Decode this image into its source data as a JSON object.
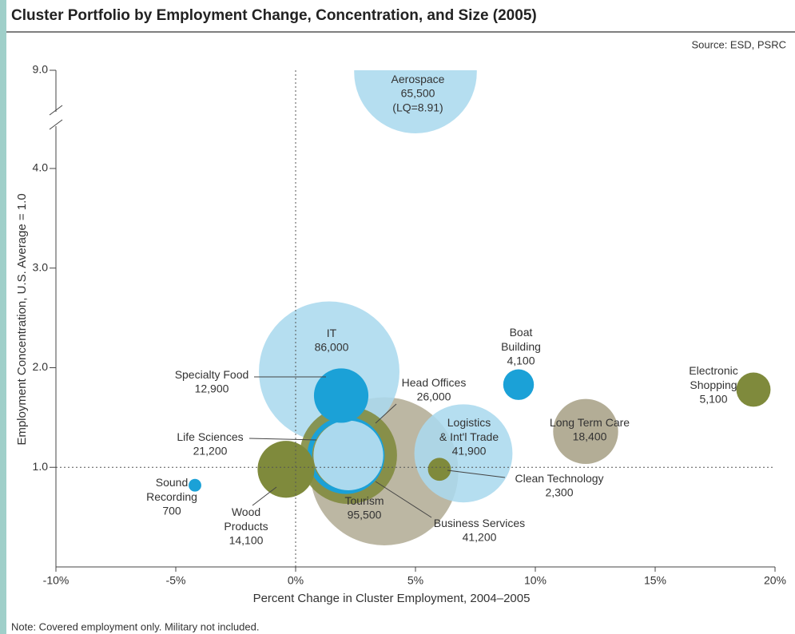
{
  "chart_data": {
    "type": "bubble",
    "title": "Cluster Portfolio by Employment Change, Concentration, and Size (2005)",
    "source": "Source: ESD, PSRC",
    "note": "Note: Covered employment only. Military not included.",
    "x_label": "Percent Change in Cluster Employment, 2004–2005",
    "y_label": "Employment Concentration, U.S. Average = 1.0",
    "aerospace_note": "(LQ=8.91)",
    "categories": [
      "Aerospace",
      "IT",
      "Specialty Food",
      "Head Offices",
      "Life Sciences",
      "Business Services",
      "Tourism",
      "Wood Products",
      "Sound Recording",
      "Logistics & Int'l Trade",
      "Clean Technology",
      "Boat Building",
      "Long Term Care",
      "Electronic Shopping"
    ],
    "x": [
      5.0,
      1.4,
      1.9,
      2.1,
      2.2,
      2.2,
      3.7,
      -0.4,
      -4.2,
      7.0,
      6.0,
      9.3,
      12.1,
      19.1
    ],
    "y": [
      8.91,
      1.96,
      1.72,
      1.12,
      1.12,
      1.12,
      0.96,
      0.98,
      0.82,
      1.14,
      0.98,
      1.83,
      1.36,
      1.78
    ],
    "sizes": [
      65500,
      86000,
      12900,
      26000,
      21200,
      41200,
      95500,
      14100,
      700,
      41900,
      2300,
      4100,
      18400,
      5100
    ],
    "size_labels": [
      "65,500",
      "86,000",
      "12,900",
      "26,000",
      "21,200",
      "41,200",
      "95,500",
      "14,100",
      "700",
      "41,900",
      "2,300",
      "4,100",
      "18,400",
      "5,100"
    ],
    "colors": [
      "#abd9ee",
      "#abd9ee",
      "#1ba1d7",
      "#1ba1d7",
      "#abd9ee",
      "#7f8a3c",
      "#b3ad96",
      "#7f8a3c",
      "#1ba1d7",
      "#abd9ee",
      "#7f8a3c",
      "#1ba1d7",
      "#b3ad96",
      "#7f8a3c"
    ],
    "styles": [
      "fill",
      "fill",
      "fill",
      "ring",
      "fill",
      "fill",
      "fill",
      "fill",
      "fill",
      "fill",
      "fill",
      "fill",
      "fill",
      "fill"
    ],
    "xlim": [
      -10,
      20
    ],
    "xticks": [
      {
        "value": -10,
        "label": "-10%"
      },
      {
        "value": -5,
        "label": "-5%"
      },
      {
        "value": 0,
        "label": "0%"
      },
      {
        "value": 5,
        "label": "5%"
      },
      {
        "value": 10,
        "label": "10%"
      },
      {
        "value": 15,
        "label": "15%"
      },
      {
        "value": 20,
        "label": "20%"
      }
    ],
    "ylim": [
      0,
      9
    ],
    "yticks": [
      {
        "value": 1,
        "label": "1.0"
      },
      {
        "value": 2,
        "label": "2.0"
      },
      {
        "value": 3,
        "label": "3.0"
      },
      {
        "value": 4,
        "label": "4.0"
      },
      {
        "value": 9,
        "label": "9.0"
      }
    ],
    "axis_break": true,
    "reference_lines": {
      "x": 0,
      "y": 1
    }
  }
}
